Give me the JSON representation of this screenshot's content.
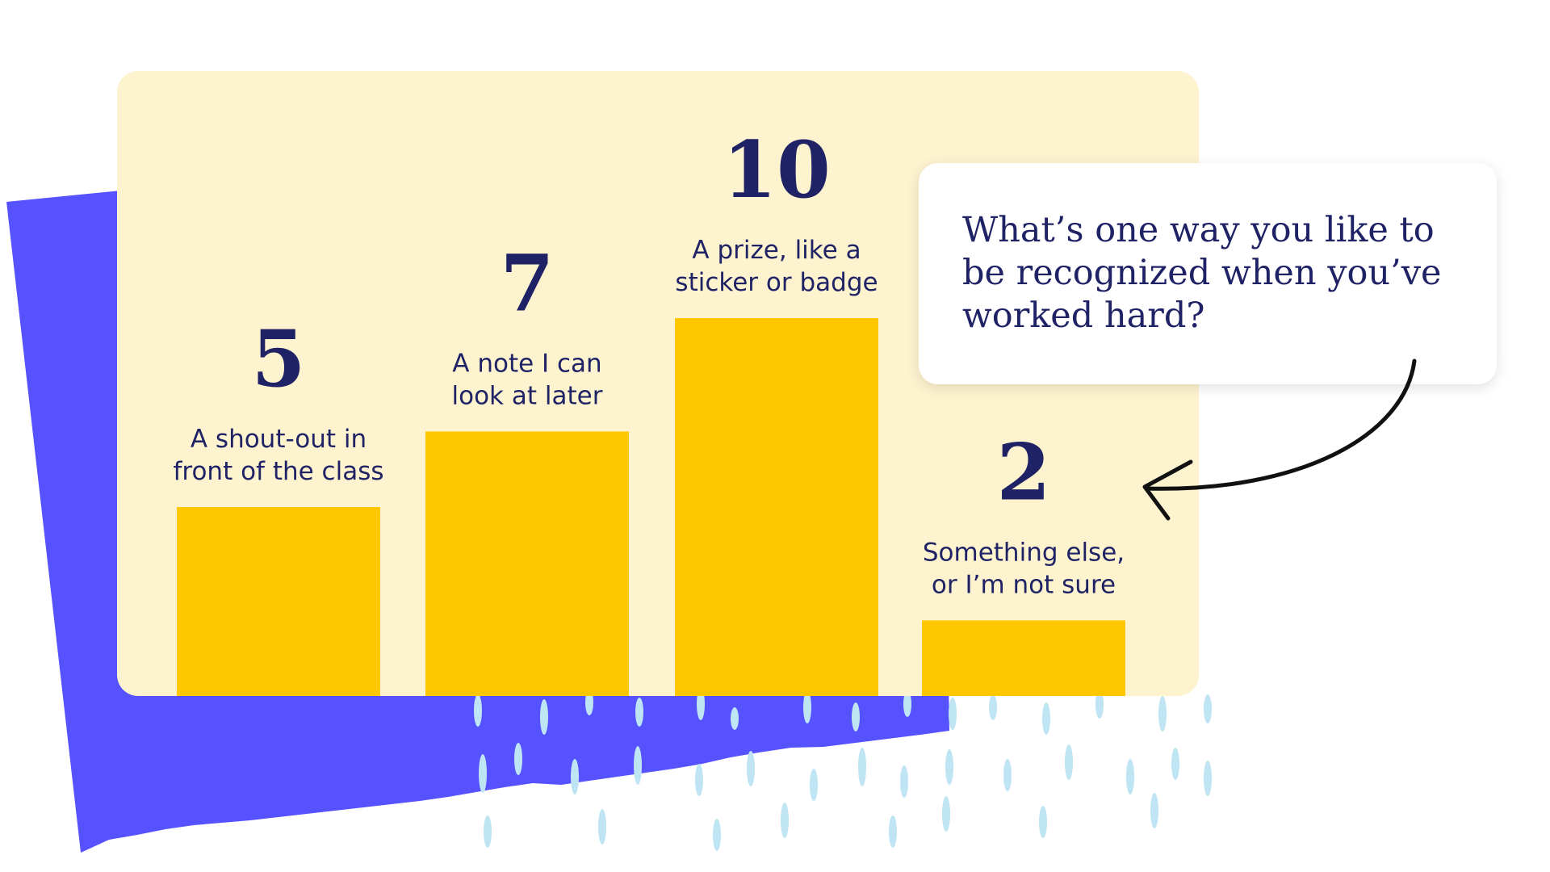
{
  "question": {
    "lines": [
      "What’s one way you like to",
      "be recognized when you’ve",
      "worked hard?"
    ]
  },
  "chart_data": {
    "type": "bar",
    "categories": [
      [
        "A shout-out in",
        "front of the class"
      ],
      [
        "A note I can",
        "look at later"
      ],
      [
        "A prize, like a",
        "sticker or badge"
      ],
      [
        "Something else,",
        "or I’m not sure"
      ]
    ],
    "values": [
      5,
      7,
      10,
      2
    ],
    "value_labels": [
      "5",
      "7",
      "10",
      "2"
    ],
    "ylim": [
      0,
      10
    ],
    "grid": false,
    "legend": "none"
  },
  "colors": {
    "card_background": "#fef3cf",
    "bar": "#fec700",
    "text": "#1f2366",
    "backdrop": "#5752ff",
    "rain": "#bfe4f3",
    "arrow": "#111111"
  }
}
